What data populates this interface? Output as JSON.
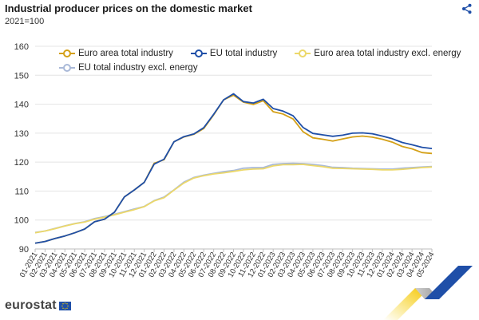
{
  "header": {
    "title": "Industrial producer prices on the domestic market",
    "subtitle": "2021=100"
  },
  "brand": {
    "logo_text": "eurostat"
  },
  "colors": {
    "euro_area_total": "#d4a017",
    "eu_total": "#1f4fa8",
    "euro_area_excl": "#ecd86a",
    "eu_excl": "#a9b9d8",
    "grid": "#e4e4e4",
    "axis_text": "#333333"
  },
  "chart_data": {
    "type": "line",
    "title": "Industrial producer prices on the domestic market",
    "subtitle": "2021=100",
    "xlabel": "",
    "ylabel": "",
    "ylim": [
      90,
      160
    ],
    "yticks": [
      90,
      100,
      110,
      120,
      130,
      140,
      150,
      160
    ],
    "grid": true,
    "legend_position": "top-left",
    "x": [
      "01-2021",
      "02-2021",
      "03-2021",
      "04-2021",
      "05-2021",
      "06-2021",
      "07-2021",
      "08-2021",
      "09-2021",
      "10-2021",
      "11-2021",
      "12-2021",
      "01-2022",
      "02-2022",
      "03-2022",
      "04-2022",
      "05-2022",
      "06-2022",
      "07-2022",
      "08-2022",
      "09-2022",
      "10-2022",
      "11-2022",
      "12-2022",
      "01-2023",
      "02-2023",
      "03-2023",
      "04-2023",
      "05-2023",
      "06-2023",
      "07-2023",
      "08-2023",
      "09-2023",
      "10-2023",
      "11-2023",
      "12-2023",
      "01-2024",
      "02-2024",
      "03-2024",
      "04-2024",
      "05-2024"
    ],
    "series": [
      {
        "name": "Euro area total industry",
        "color": "#d4a017",
        "values": [
          92.0,
          92.6,
          93.6,
          94.5,
          95.6,
          96.9,
          99.4,
          100.3,
          102.7,
          108.0,
          110.4,
          113.0,
          119.6,
          120.8,
          127.0,
          128.7,
          129.6,
          131.6,
          136.3,
          141.5,
          143.1,
          140.7,
          139.9,
          141.2,
          137.4,
          136.6,
          134.9,
          130.5,
          128.4,
          127.9,
          127.3,
          128.0,
          128.7,
          129.0,
          128.6,
          127.9,
          126.9,
          125.4,
          124.6,
          123.3,
          123.0
        ]
      },
      {
        "name": "EU total industry",
        "color": "#1f4fa8",
        "values": [
          92.0,
          92.6,
          93.6,
          94.5,
          95.6,
          96.9,
          99.4,
          100.3,
          102.7,
          108.0,
          110.4,
          113.0,
          119.3,
          121.0,
          127.0,
          128.8,
          129.7,
          131.9,
          136.5,
          141.5,
          143.6,
          140.9,
          140.4,
          141.7,
          138.5,
          137.6,
          136.0,
          132.0,
          129.9,
          129.4,
          128.9,
          129.3,
          130.0,
          130.1,
          129.8,
          129.0,
          128.1,
          126.8,
          126.0,
          125.1,
          124.7
        ]
      },
      {
        "name": "Euro area total industry excl. energy",
        "color": "#ecd86a",
        "values": [
          95.6,
          96.2,
          97.0,
          97.9,
          98.7,
          99.3,
          100.3,
          101.0,
          101.8,
          102.7,
          103.6,
          104.6,
          106.6,
          107.7,
          110.3,
          112.8,
          114.5,
          115.3,
          115.9,
          116.3,
          116.8,
          117.3,
          117.6,
          117.7,
          118.7,
          119.1,
          119.1,
          119.2,
          118.8,
          118.4,
          117.9,
          117.8,
          117.7,
          117.6,
          117.5,
          117.3,
          117.3,
          117.5,
          117.8,
          118.1,
          118.3
        ]
      },
      {
        "name": "EU total industry excl. energy",
        "color": "#a9b9d8",
        "values": [
          95.7,
          96.2,
          97.1,
          98.0,
          98.8,
          99.4,
          100.5,
          101.2,
          102.0,
          102.9,
          103.8,
          104.7,
          106.7,
          107.9,
          110.4,
          113.1,
          114.7,
          115.5,
          116.1,
          116.7,
          117.1,
          117.9,
          118.1,
          118.1,
          119.2,
          119.5,
          119.6,
          119.5,
          119.2,
          118.8,
          118.2,
          118.1,
          117.9,
          117.8,
          117.7,
          117.6,
          117.6,
          117.9,
          118.1,
          118.3,
          118.5
        ]
      }
    ]
  }
}
